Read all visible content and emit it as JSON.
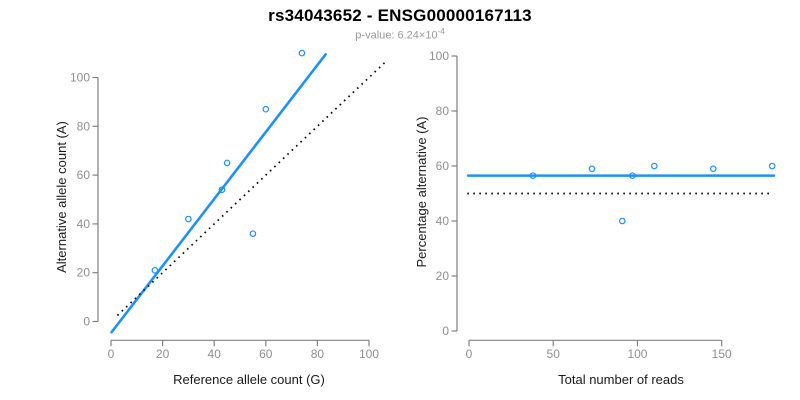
{
  "header": {
    "title": "rs34043652 - ENSG00000167113",
    "subtitle_prefix": "p-value: 6.24×10",
    "subtitle_exponent": "-4"
  },
  "colors": {
    "accent_blue": "#1E90FF",
    "dotted_black": "#000000",
    "axis_gray": "#808080",
    "tick_label_gray": "#8f8f8f",
    "axis_title_color": "#1a1a1a",
    "subtitle_gray": "#999999"
  },
  "chart_data": [
    {
      "id": "allele-count-scatter",
      "type": "scatter",
      "xlabel": "Reference allele count (G)",
      "ylabel": "Alternative allele count (A)",
      "x_ticks": [
        0,
        20,
        40,
        60,
        80,
        100
      ],
      "y_ticks": [
        0,
        20,
        40,
        60,
        80,
        100
      ],
      "xlim": [
        0,
        107
      ],
      "ylim": [
        -5,
        112
      ],
      "grid": false,
      "points": [
        [
          17,
          21
        ],
        [
          30,
          42
        ],
        [
          43,
          54
        ],
        [
          45,
          65
        ],
        [
          55,
          36
        ],
        [
          60,
          87
        ],
        [
          74,
          110
        ]
      ],
      "lines": [
        {
          "name": "regression-fit-line",
          "style": "solid",
          "color_key": "accent_blue",
          "x1": 0.2,
          "y1": -4.4,
          "x2": 83.2,
          "y2": 109.5
        },
        {
          "name": "identity-line",
          "style": "dotted",
          "color_key": "dotted_black",
          "x1": 2.5,
          "y1": 2.5,
          "x2": 106,
          "y2": 106
        }
      ]
    },
    {
      "id": "percentage-reads-scatter",
      "type": "scatter",
      "xlabel": "Total number of reads",
      "ylabel": "Percentage alternative (A)",
      "x_ticks": [
        0,
        50,
        100,
        150
      ],
      "y_ticks": [
        0,
        20,
        40,
        60,
        80,
        100
      ],
      "xlim": [
        -2,
        182
      ],
      "ylim": [
        0,
        100
      ],
      "grid": false,
      "points": [
        [
          38,
          56.5
        ],
        [
          73,
          59
        ],
        [
          91,
          40
        ],
        [
          97,
          56.5
        ],
        [
          110,
          60
        ],
        [
          145,
          59
        ],
        [
          180,
          60
        ]
      ],
      "lines": [
        {
          "name": "mean-percentage-line",
          "style": "solid",
          "color_key": "accent_blue",
          "x1": -0.5,
          "y1": 56.5,
          "x2": 181,
          "y2": 56.5
        },
        {
          "name": "expected-50-percent-line",
          "style": "dotted",
          "color_key": "dotted_black",
          "x1": -1,
          "y1": 50,
          "x2": 178.5,
          "y2": 50
        }
      ]
    }
  ]
}
